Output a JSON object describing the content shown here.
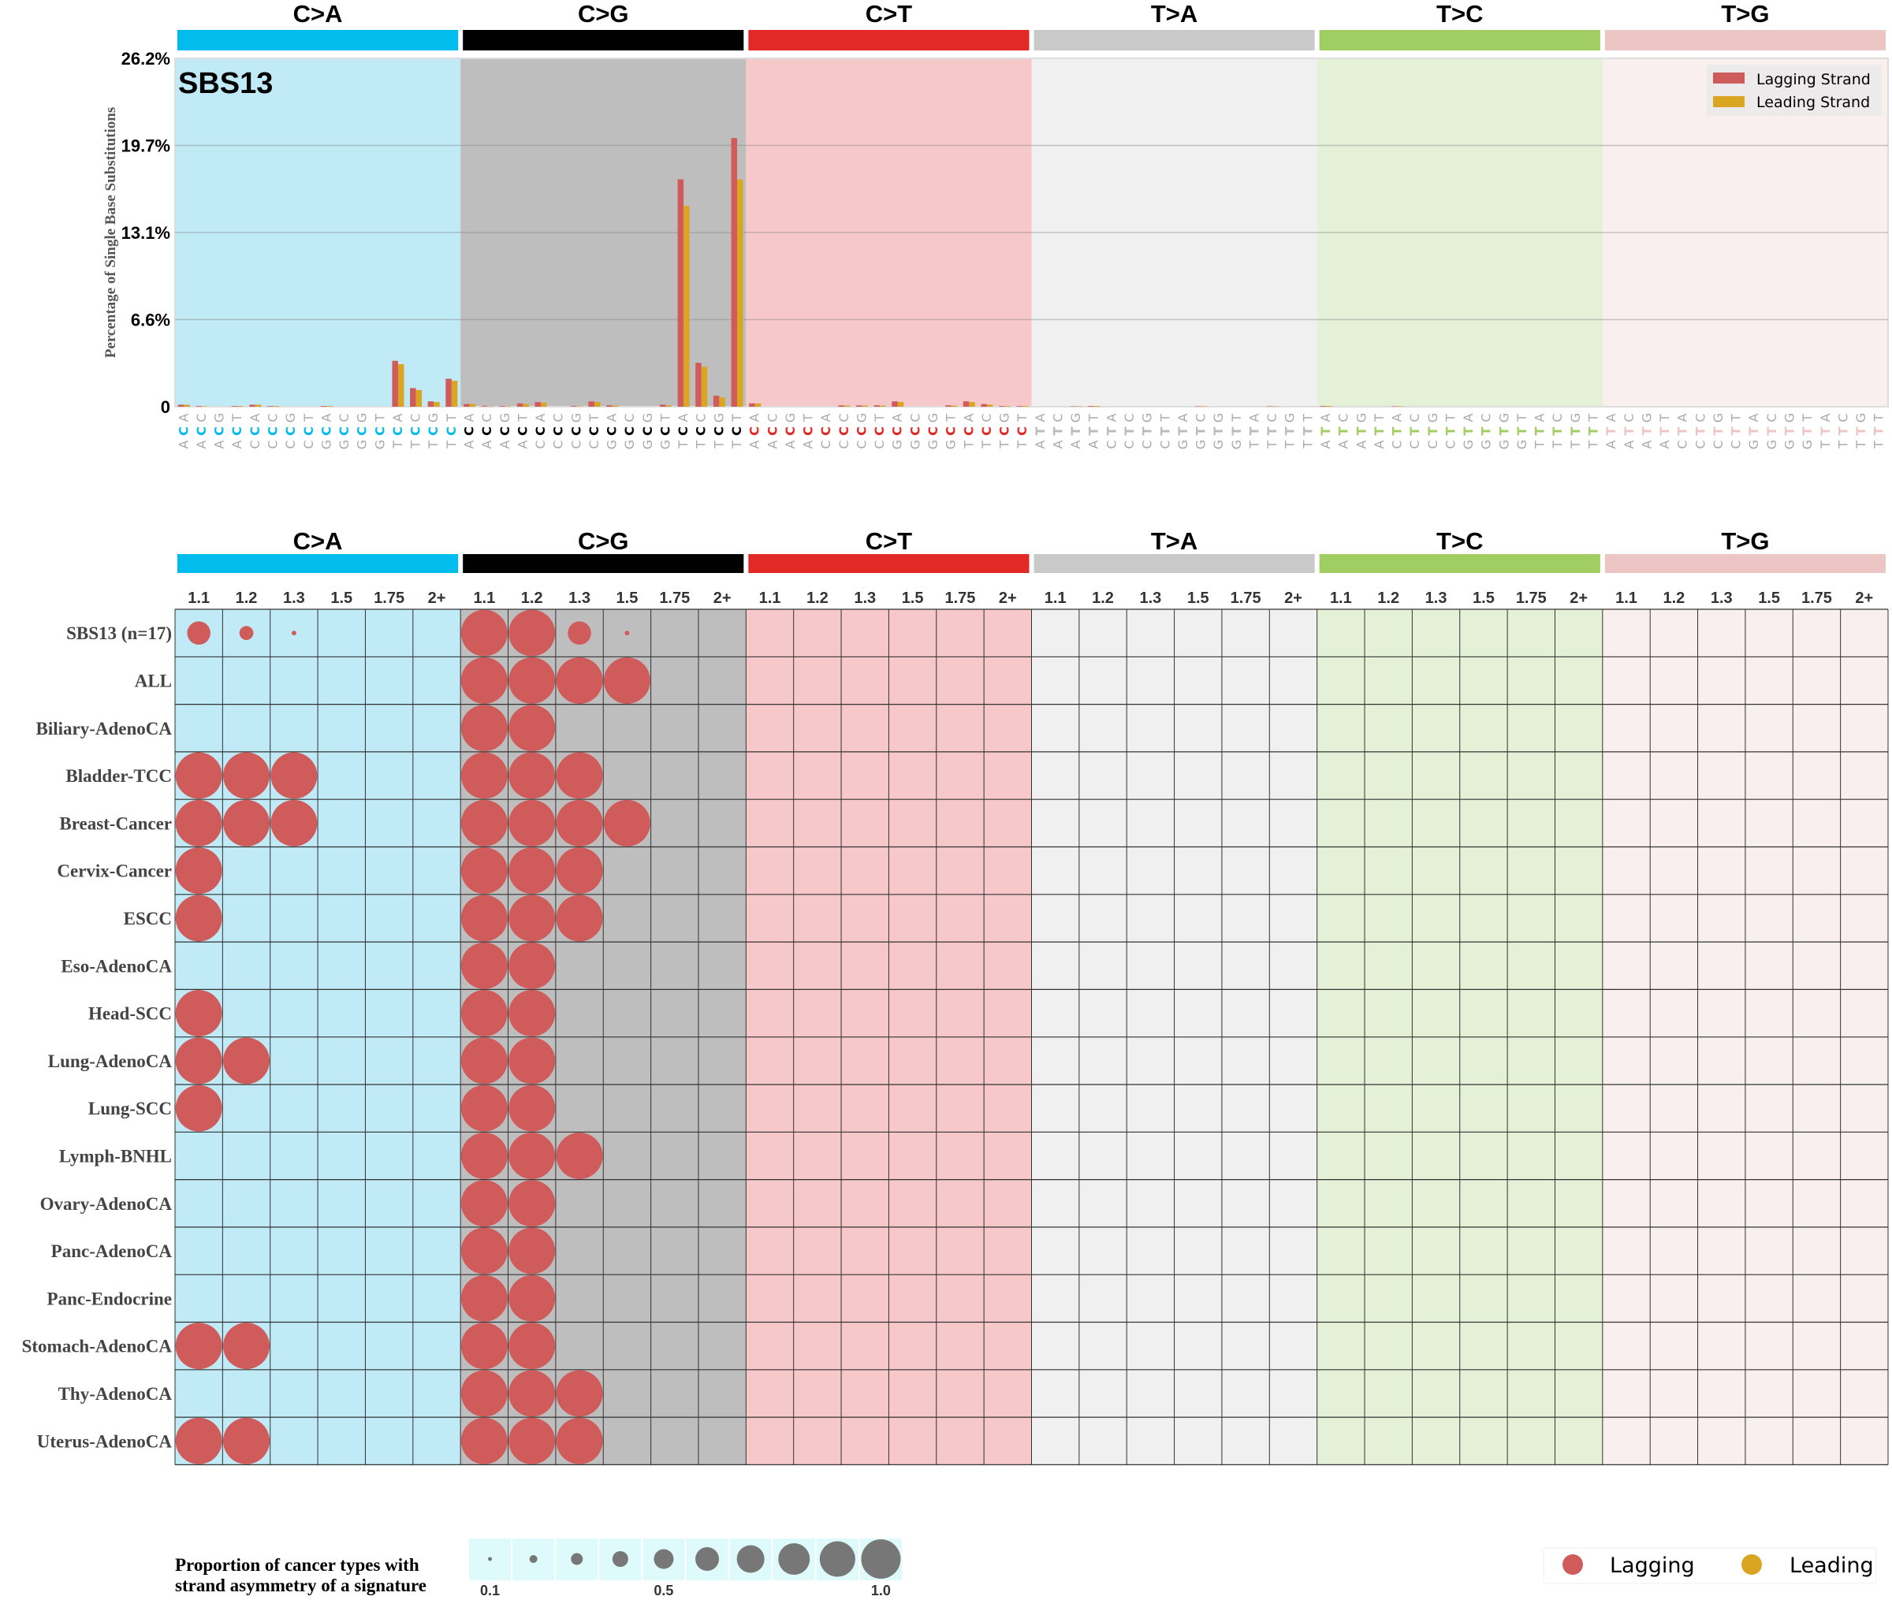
{
  "chart_data": [
    {
      "type": "bar",
      "title": "SBS13",
      "ylabel": "Percentage of Single Base Substitutions",
      "ylim": [
        0,
        26.2
      ],
      "yticks": [
        "0",
        "6.6%",
        "13.1%",
        "19.7%",
        "26.2%"
      ],
      "ytick_values": [
        0,
        6.55,
        13.1,
        19.65,
        26.2
      ],
      "grid": true,
      "legend_position": "top-right",
      "legend": [
        "Lagging Strand",
        "Leading Strand"
      ],
      "series_colors": {
        "lagging": "#cf5b5b",
        "leading": "#daa520"
      },
      "categories": [
        {
          "name": "C>A",
          "color": "#03bcee",
          "bg": "#bfeaf6"
        },
        {
          "name": "C>G",
          "color": "#010101",
          "bg": "#bebebe"
        },
        {
          "name": "C>T",
          "color": "#e32926",
          "bg": "#f6c8c9"
        },
        {
          "name": "T>A",
          "color": "#cac9c9",
          "bg": "#f0f0f0"
        },
        {
          "name": "T>C",
          "color": "#a1ce63",
          "bg": "#e4f1d7"
        },
        {
          "name": "T>G",
          "color": "#ebc6c4",
          "bg": "#f8efee"
        }
      ],
      "contexts": [
        "A_A",
        "A_C",
        "A_G",
        "A_T",
        "C_A",
        "C_C",
        "C_G",
        "C_T",
        "G_A",
        "G_C",
        "G_G",
        "G_T",
        "T_A",
        "T_C",
        "T_G",
        "T_T"
      ],
      "series": [
        {
          "name": "Lagging Strand",
          "values": {
            "C>A": [
              0.15,
              0.05,
              0,
              0.05,
              0.15,
              0.05,
              0,
              0,
              0.05,
              0,
              0,
              0,
              3.45,
              1.4,
              0.4,
              2.1
            ],
            "C>G": [
              0.2,
              0.05,
              0.05,
              0.25,
              0.35,
              0,
              0.05,
              0.4,
              0.1,
              0,
              0,
              0.15,
              17.1,
              3.3,
              0.83,
              20.2
            ],
            "C>T": [
              0.25,
              0,
              0,
              0,
              0,
              0.1,
              0.1,
              0.1,
              0.4,
              0,
              0,
              0.1,
              0.4,
              0.2,
              0.05,
              0.05
            ],
            "T>A": [
              0,
              0,
              0.03,
              0.05,
              0,
              0,
              0,
              0,
              0,
              0.03,
              0,
              0,
              0,
              0.03,
              0,
              0
            ],
            "T>C": [
              0.05,
              0,
              0,
              0,
              0.03,
              0,
              0,
              0,
              0,
              0,
              0,
              0,
              0,
              0,
              0,
              0
            ],
            "T>G": [
              0,
              0,
              0,
              0,
              0,
              0,
              0,
              0,
              0,
              0,
              0,
              0,
              0,
              0,
              0,
              0
            ]
          }
        },
        {
          "name": "Leading Strand",
          "values": {
            "C>A": [
              0.15,
              0.03,
              0,
              0.05,
              0.15,
              0.05,
              0,
              0,
              0.05,
              0,
              0,
              0,
              3.2,
              1.25,
              0.35,
              1.95
            ],
            "C>G": [
              0.2,
              0.03,
              0.03,
              0.2,
              0.3,
              0,
              0.03,
              0.35,
              0.08,
              0,
              0,
              0.1,
              15.1,
              3.0,
              0.7,
              17.1
            ],
            "C>T": [
              0.25,
              0,
              0,
              0,
              0,
              0.08,
              0.08,
              0.08,
              0.35,
              0,
              0,
              0.08,
              0.35,
              0.15,
              0.05,
              0.05
            ],
            "T>A": [
              0,
              0,
              0.03,
              0.05,
              0,
              0,
              0,
              0,
              0,
              0.03,
              0,
              0,
              0,
              0.03,
              0,
              0
            ],
            "T>C": [
              0.05,
              0,
              0,
              0,
              0.03,
              0,
              0,
              0,
              0,
              0,
              0,
              0,
              0,
              0,
              0,
              0
            ],
            "T>G": [
              0,
              0,
              0,
              0,
              0,
              0,
              0,
              0,
              0,
              0,
              0,
              0,
              0,
              0,
              0,
              0
            ]
          }
        }
      ]
    },
    {
      "type": "bubble-grid",
      "columns": [
        "1.1",
        "1.2",
        "1.3",
        "1.5",
        "1.75",
        "2+"
      ],
      "legend": [
        "Lagging",
        "Leading"
      ],
      "size_legend_title": [
        "Proportion of cancer types with",
        "strand asymmetry of a signature"
      ],
      "size_legend_values": [
        0.1,
        0.2,
        0.3,
        0.4,
        0.5,
        0.6,
        0.7,
        0.8,
        0.9,
        1.0
      ],
      "size_legend_labels": {
        "0.1": "0.1",
        "0.5": "0.5",
        "1.0": "1.0"
      },
      "rows": [
        {
          "label": "SBS13 (n=17)",
          "lagging": {
            "C>A": [
              0.5,
              0.3,
              0.1,
              0,
              0,
              0
            ],
            "C>G": [
              1,
              1,
              0.5,
              0.1,
              0,
              0
            ]
          }
        },
        {
          "label": "ALL",
          "lagging": {
            "C>G": [
              1,
              1,
              1,
              1,
              0,
              0
            ]
          }
        },
        {
          "label": "Biliary-AdenoCA",
          "lagging": {
            "C>G": [
              1,
              1,
              0,
              0,
              0,
              0
            ]
          }
        },
        {
          "label": "Bladder-TCC",
          "lagging": {
            "C>A": [
              1,
              1,
              1,
              0,
              0,
              0
            ],
            "C>G": [
              1,
              1,
              1,
              0,
              0,
              0
            ]
          }
        },
        {
          "label": "Breast-Cancer",
          "lagging": {
            "C>A": [
              1,
              1,
              1,
              0,
              0,
              0
            ],
            "C>G": [
              1,
              1,
              1,
              1,
              0,
              0
            ]
          }
        },
        {
          "label": "Cervix-Cancer",
          "lagging": {
            "C>A": [
              1,
              0,
              0,
              0,
              0,
              0
            ],
            "C>G": [
              1,
              1,
              1,
              0,
              0,
              0
            ]
          }
        },
        {
          "label": "ESCC",
          "lagging": {
            "C>A": [
              1,
              0,
              0,
              0,
              0,
              0
            ],
            "C>G": [
              1,
              1,
              1,
              0,
              0,
              0
            ]
          }
        },
        {
          "label": "Eso-AdenoCA",
          "lagging": {
            "C>G": [
              1,
              1,
              0,
              0,
              0,
              0
            ]
          }
        },
        {
          "label": "Head-SCC",
          "lagging": {
            "C>A": [
              1,
              0,
              0,
              0,
              0,
              0
            ],
            "C>G": [
              1,
              1,
              0,
              0,
              0,
              0
            ]
          }
        },
        {
          "label": "Lung-AdenoCA",
          "lagging": {
            "C>A": [
              1,
              1,
              0,
              0,
              0,
              0
            ],
            "C>G": [
              1,
              1,
              0,
              0,
              0,
              0
            ]
          }
        },
        {
          "label": "Lung-SCC",
          "lagging": {
            "C>A": [
              1,
              0,
              0,
              0,
              0,
              0
            ],
            "C>G": [
              1,
              1,
              0,
              0,
              0,
              0
            ]
          }
        },
        {
          "label": "Lymph-BNHL",
          "lagging": {
            "C>G": [
              1,
              1,
              1,
              0,
              0,
              0
            ]
          }
        },
        {
          "label": "Ovary-AdenoCA",
          "lagging": {
            "C>G": [
              1,
              1,
              0,
              0,
              0,
              0
            ]
          }
        },
        {
          "label": "Panc-AdenoCA",
          "lagging": {
            "C>G": [
              1,
              1,
              0,
              0,
              0,
              0
            ]
          }
        },
        {
          "label": "Panc-Endocrine",
          "lagging": {
            "C>G": [
              1,
              1,
              0,
              0,
              0,
              0
            ]
          }
        },
        {
          "label": "Stomach-AdenoCA",
          "lagging": {
            "C>A": [
              1,
              1,
              0,
              0,
              0,
              0
            ],
            "C>G": [
              1,
              1,
              0,
              0,
              0,
              0
            ]
          }
        },
        {
          "label": "Thy-AdenoCA",
          "lagging": {
            "C>G": [
              1,
              1,
              1,
              0,
              0,
              0
            ]
          }
        },
        {
          "label": "Uterus-AdenoCA",
          "lagging": {
            "C>A": [
              1,
              1,
              0,
              0,
              0,
              0
            ],
            "C>G": [
              1,
              1,
              1,
              0,
              0,
              0
            ]
          }
        }
      ]
    }
  ]
}
